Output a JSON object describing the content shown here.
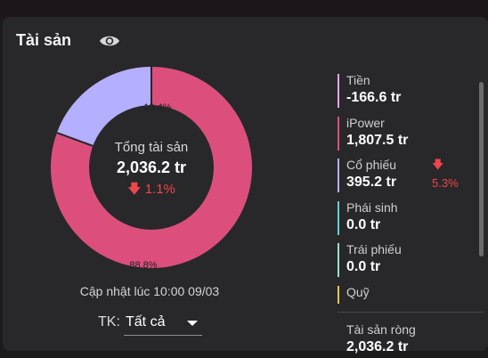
{
  "header": {
    "title": "Tài sản",
    "visibility_icon": "eye-icon"
  },
  "summary": {
    "label": "Tổng tài sản",
    "total": "2,036.2 tr",
    "change_arrow": "down-arrow-icon",
    "change": "1.1%",
    "change_color": "#f0454b"
  },
  "chart_data": {
    "type": "pie",
    "categories": [
      "iPower",
      "Cổ phiếu"
    ],
    "values": [
      88.8,
      19.4
    ],
    "value_labels": [
      "88.8%",
      "19.4%"
    ],
    "colors": [
      "#dc4f7d",
      "#b4b0ff"
    ]
  },
  "updated": "Cập nhật lúc 10:00 09/03",
  "account": {
    "label": "TK:",
    "selected": "Tất cả"
  },
  "legend": [
    {
      "label": "Tiền",
      "value": "-166.6 tr",
      "color": "#e8a3f0"
    },
    {
      "label": "iPower",
      "value": "1,807.5 tr",
      "color": "#dc4f7d"
    },
    {
      "label": "Cổ phiếu",
      "value": "395.2 tr",
      "color": "#b4b0ff",
      "change": "5.3%"
    },
    {
      "label": "Phái sinh",
      "value": "0.0 tr",
      "color": "#5fd3d9"
    },
    {
      "label": "Trái phiếu",
      "value": "0.0 tr",
      "color": "#9be0cc"
    },
    {
      "label": "Quỹ",
      "value": "",
      "color": "#e8c84f"
    }
  ],
  "net_assets": {
    "label": "Tài sản ròng",
    "value": "2,036.2 tr"
  }
}
